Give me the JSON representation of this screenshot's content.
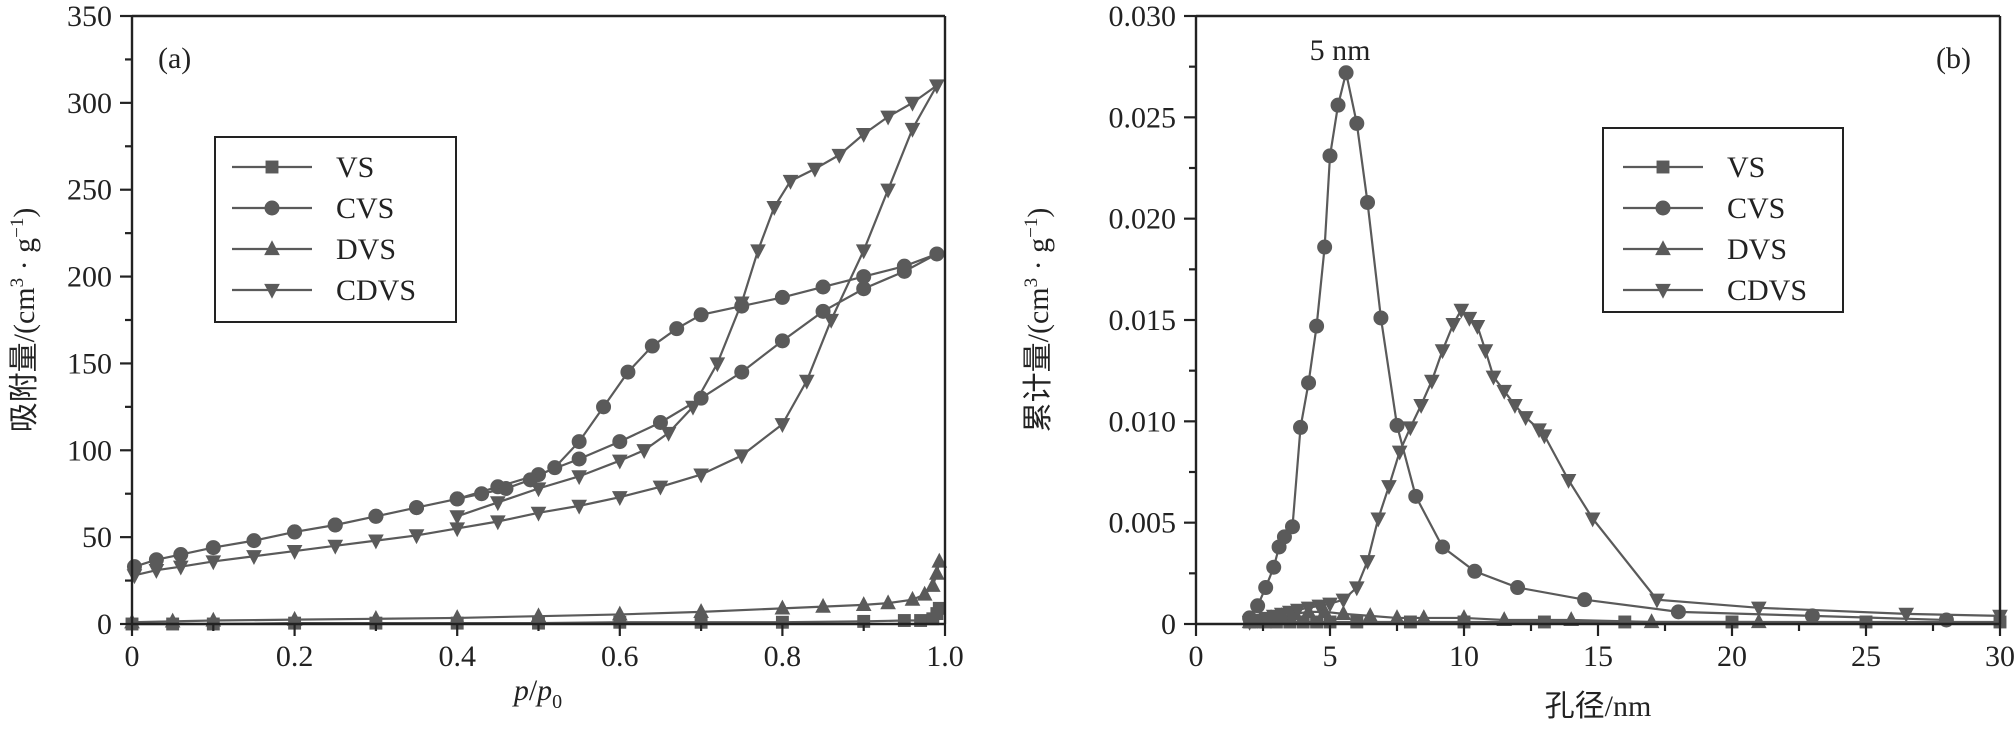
{
  "figure": {
    "panels": [
      {
        "id": "a",
        "panel_label": "(a)",
        "legend": [
          "VS",
          "CVS",
          "DVS",
          "CDVS"
        ]
      },
      {
        "id": "b",
        "panel_label": "(b)",
        "legend": [
          "VS",
          "CVS",
          "DVS",
          "CDVS"
        ],
        "annotation": "5 nm"
      }
    ]
  },
  "chart_data": [
    {
      "type": "line",
      "panel_label": "(a)",
      "xlabel": "p/p0",
      "xlabel_parts": {
        "italic": "p",
        "slash": "/",
        "italic2": "p",
        "sub": "0"
      },
      "ylabel": "吸附量/(cm³·g⁻¹)",
      "ylabel_parts": {
        "main": "吸附量/(cm",
        "sup1": "3",
        "dot": " · g",
        "sup2": "−1",
        "end": ")"
      },
      "xlim": [
        0,
        1.0
      ],
      "ylim": [
        0,
        350
      ],
      "xticks": [
        0,
        0.2,
        0.4,
        0.6,
        0.8,
        1.0
      ],
      "xtick_labels": [
        "0",
        "0.2",
        "0.4",
        "0.6",
        "0.8",
        "1.0"
      ],
      "yticks": [
        0,
        50,
        100,
        150,
        200,
        250,
        300,
        350
      ],
      "ytick_labels": [
        "0",
        "50",
        "100",
        "150",
        "200",
        "250",
        "300",
        "350"
      ],
      "legend_placement": "upper-left",
      "grid": false,
      "series": [
        {
          "name": "VS",
          "marker": "square",
          "line_color": "#5a5a5a",
          "x": [
            0.0,
            0.05,
            0.1,
            0.2,
            0.3,
            0.4,
            0.5,
            0.6,
            0.7,
            0.8,
            0.9,
            0.95,
            0.97,
            0.985,
            0.99,
            0.993
          ],
          "y": [
            0,
            0,
            0,
            0.5,
            0.5,
            0.5,
            0.5,
            1,
            1,
            1,
            1.5,
            2,
            2,
            3,
            6,
            9
          ]
        },
        {
          "name": "CVS",
          "marker": "circle",
          "line_color": "#5a5a5a",
          "x": [
            0.003,
            0.03,
            0.06,
            0.1,
            0.15,
            0.2,
            0.25,
            0.3,
            0.35,
            0.4,
            0.45,
            0.5,
            0.55,
            0.6,
            0.65,
            0.7,
            0.75,
            0.8,
            0.85,
            0.9,
            0.95,
            0.99,
            0.95,
            0.9,
            0.85,
            0.8,
            0.75,
            0.7,
            0.67,
            0.64,
            0.61,
            0.58,
            0.55,
            0.52,
            0.49,
            0.46,
            0.43,
            0.4,
            0.35,
            0.3,
            0.25,
            0.2
          ],
          "y": [
            33,
            37,
            40,
            44,
            48,
            53,
            57,
            62,
            67,
            72,
            79,
            86,
            95,
            105,
            116,
            130,
            145,
            163,
            180,
            193,
            203,
            213,
            206,
            200,
            194,
            188,
            183,
            178,
            170,
            160,
            145,
            125,
            105,
            90,
            83,
            78,
            75,
            72,
            67,
            62,
            57,
            53
          ]
        },
        {
          "name": "DVS",
          "marker": "triangle-up",
          "line_color": "#5a5a5a",
          "x": [
            0.0,
            0.05,
            0.1,
            0.2,
            0.3,
            0.4,
            0.5,
            0.6,
            0.7,
            0.8,
            0.85,
            0.9,
            0.93,
            0.96,
            0.975,
            0.985,
            0.99,
            0.993
          ],
          "y": [
            1,
            1.5,
            2,
            2.5,
            3,
            3.5,
            4.5,
            5.5,
            7,
            9,
            10,
            11,
            12,
            14,
            17,
            22,
            29,
            36
          ]
        },
        {
          "name": "CDVS",
          "marker": "triangle-down",
          "line_color": "#5a5a5a",
          "x": [
            0.003,
            0.03,
            0.06,
            0.1,
            0.15,
            0.2,
            0.25,
            0.3,
            0.35,
            0.4,
            0.45,
            0.5,
            0.55,
            0.6,
            0.65,
            0.7,
            0.75,
            0.8,
            0.83,
            0.86,
            0.9,
            0.93,
            0.96,
            0.99,
            0.96,
            0.93,
            0.9,
            0.87,
            0.84,
            0.81,
            0.79,
            0.77,
            0.75,
            0.72,
            0.69,
            0.66,
            0.63,
            0.6,
            0.55,
            0.5,
            0.45,
            0.4
          ],
          "y": [
            28,
            31,
            33,
            36,
            39,
            42,
            45,
            48,
            51,
            55,
            59,
            64,
            68,
            73,
            79,
            86,
            97,
            115,
            140,
            175,
            215,
            250,
            285,
            310,
            300,
            292,
            282,
            270,
            262,
            255,
            240,
            215,
            185,
            150,
            125,
            110,
            100,
            94,
            85,
            78,
            70,
            62
          ]
        }
      ]
    },
    {
      "type": "line",
      "panel_label": "(b)",
      "xlabel": "孔径/nm",
      "ylabel": "累计量/(cm³·g⁻¹)",
      "ylabel_parts": {
        "main": "累计量/(cm",
        "sup1": "3",
        "dot": " · g",
        "sup2": "−1",
        "end": ")"
      },
      "xlim": [
        0,
        30
      ],
      "ylim": [
        0,
        0.03
      ],
      "xticks": [
        0,
        5,
        10,
        15,
        20,
        25,
        30
      ],
      "xtick_labels": [
        "0",
        "5",
        "10",
        "15",
        "20",
        "25",
        "30"
      ],
      "yticks": [
        0,
        0.005,
        0.01,
        0.015,
        0.02,
        0.025,
        0.03
      ],
      "ytick_labels": [
        "0",
        "0.005",
        "0.010",
        "0.015",
        "0.020",
        "0.025",
        "0.030"
      ],
      "legend_placement": "upper-right",
      "grid": false,
      "annotations": [
        {
          "text": "5 nm",
          "x": 5,
          "y": 0.0272
        }
      ],
      "series": [
        {
          "name": "VS",
          "marker": "square",
          "line_color": "#5a5a5a",
          "x": [
            2.0,
            2.3,
            2.6,
            3.0,
            3.5,
            4.0,
            4.5,
            5.0,
            6.0,
            8.0,
            10.0,
            13.0,
            16.0,
            20.0,
            25.0,
            30.0
          ],
          "y": [
            0.0001,
            0.0001,
            0.0001,
            0.0001,
            0.0001,
            0.0001,
            0.0001,
            0.0001,
            0.0001,
            0.0001,
            0.0001,
            0.0001,
            0.0001,
            0.0001,
            0.0001,
            0.0001
          ]
        },
        {
          "name": "CVS",
          "marker": "circle",
          "line_color": "#5a5a5a",
          "x": [
            2.0,
            2.3,
            2.6,
            2.9,
            3.1,
            3.3,
            3.6,
            3.9,
            4.2,
            4.5,
            4.8,
            5.0,
            5.3,
            5.6,
            6.0,
            6.4,
            6.9,
            7.5,
            8.2,
            9.2,
            10.4,
            12.0,
            14.5,
            18.0,
            23.0,
            28.0
          ],
          "y": [
            0.0003,
            0.0009,
            0.0018,
            0.0028,
            0.0038,
            0.0043,
            0.0048,
            0.0097,
            0.0119,
            0.0147,
            0.0186,
            0.0231,
            0.0256,
            0.0272,
            0.0247,
            0.0208,
            0.0151,
            0.0098,
            0.0063,
            0.0038,
            0.0026,
            0.0018,
            0.0012,
            0.0006,
            0.0004,
            0.0002
          ]
        },
        {
          "name": "DVS",
          "marker": "triangle-up",
          "line_color": "#5a5a5a",
          "x": [
            2.0,
            2.4,
            2.8,
            3.2,
            3.7,
            4.2,
            4.8,
            5.5,
            6.5,
            7.5,
            8.5,
            10.0,
            11.5,
            14.0,
            17.0,
            21.0
          ],
          "y": [
            0.0001,
            0.0002,
            0.0003,
            0.0004,
            0.0005,
            0.0006,
            0.0006,
            0.0005,
            0.0004,
            0.0003,
            0.0003,
            0.0003,
            0.0002,
            0.0002,
            0.0001,
            0.0001
          ]
        },
        {
          "name": "CDVS",
          "marker": "triangle-down",
          "line_color": "#5a5a5a",
          "x": [
            2.0,
            2.3,
            2.6,
            2.9,
            3.2,
            3.5,
            3.8,
            4.2,
            4.6,
            5.0,
            5.5,
            6.0,
            6.4,
            6.8,
            7.2,
            7.6,
            8.0,
            8.4,
            8.8,
            9.2,
            9.6,
            9.9,
            10.2,
            10.5,
            10.8,
            11.1,
            11.5,
            11.9,
            12.3,
            12.8,
            13.0,
            13.9,
            14.8,
            17.2,
            21.0,
            26.5,
            30.0
          ],
          "y": [
            0.0001,
            0.0002,
            0.0003,
            0.0004,
            0.0005,
            0.0006,
            0.0007,
            0.0008,
            0.0009,
            0.001,
            0.0012,
            0.0018,
            0.0031,
            0.0052,
            0.0068,
            0.0085,
            0.0097,
            0.0108,
            0.012,
            0.0135,
            0.0148,
            0.0155,
            0.0151,
            0.0147,
            0.0135,
            0.0122,
            0.0115,
            0.0108,
            0.0102,
            0.0096,
            0.0093,
            0.0071,
            0.0052,
            0.0012,
            0.0008,
            0.0005,
            0.0004
          ]
        }
      ]
    }
  ]
}
